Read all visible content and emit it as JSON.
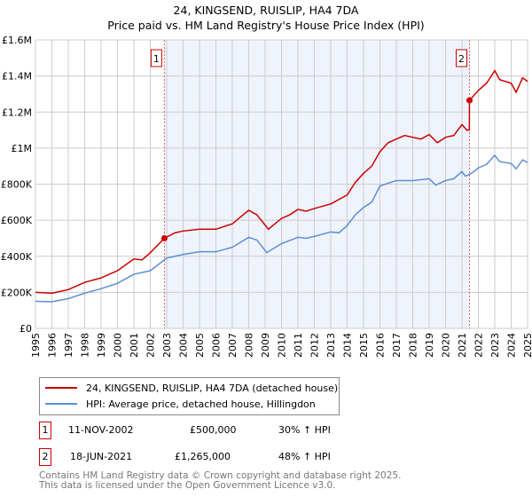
{
  "title": "24, KINGSEND, RUISLIP, HA4 7DA",
  "subtitle": "Price paid vs. HM Land Registry's House Price Index (HPI)",
  "chart_data": {
    "type": "line",
    "xlim": [
      1995,
      2025
    ],
    "ylim": [
      0,
      1600000
    ],
    "yticks": [
      0,
      200000,
      400000,
      600000,
      800000,
      1000000,
      1200000,
      1400000,
      1600000
    ],
    "ytick_labels": [
      "£0",
      "£200K",
      "£400K",
      "£600K",
      "£800K",
      "£1M",
      "£1.2M",
      "£1.4M",
      "£1.6M"
    ],
    "xticks": [
      "1995",
      "1996",
      "1997",
      "1998",
      "1999",
      "2000",
      "2001",
      "2002",
      "2003",
      "2004",
      "2005",
      "2006",
      "2007",
      "2008",
      "2009",
      "2010",
      "2011",
      "2012",
      "2013",
      "2014",
      "2015",
      "2016",
      "2017",
      "2018",
      "2019",
      "2020",
      "2021",
      "2022",
      "2023",
      "2024",
      "2025"
    ],
    "grid": true,
    "colors": {
      "red": "#cc0000",
      "blue": "#5b8fd4",
      "shade": "#eef3fc"
    },
    "shaded_range": [
      2002.86,
      2021.46
    ],
    "series": [
      {
        "name": "24, KINGSEND, RUISLIP, HA4 7DA (detached house)",
        "color": "#cc0000",
        "x": [
          1995,
          1996,
          1997,
          1998,
          1999,
          2000,
          2001,
          2001.5,
          2002,
          2002.86,
          2003.5,
          2004,
          2005,
          2006,
          2007,
          2008,
          2008.5,
          2009.2,
          2010,
          2010.5,
          2011,
          2011.5,
          2012,
          2013,
          2014,
          2014.5,
          2015,
          2015.5,
          2016,
          2016.5,
          2017,
          2017.5,
          2018,
          2018.5,
          2019,
          2019.5,
          2020,
          2020.5,
          2021,
          2021.3,
          2021.45,
          2021.46,
          2022,
          2022.5,
          2023,
          2023.3,
          2024,
          2024.3,
          2024.7,
          2025
        ],
        "y": [
          200000,
          195000,
          215000,
          255000,
          280000,
          320000,
          385000,
          380000,
          420000,
          500000,
          530000,
          540000,
          550000,
          550000,
          580000,
          655000,
          630000,
          550000,
          610000,
          630000,
          660000,
          650000,
          665000,
          690000,
          740000,
          810000,
          860000,
          900000,
          980000,
          1030000,
          1050000,
          1070000,
          1060000,
          1050000,
          1075000,
          1030000,
          1060000,
          1070000,
          1130000,
          1100000,
          1100000,
          1265000,
          1320000,
          1360000,
          1430000,
          1380000,
          1360000,
          1310000,
          1390000,
          1370000
        ]
      },
      {
        "name": "HPI: Average price, detached house, Hillingdon",
        "color": "#5b8fd4",
        "x": [
          1995,
          1996,
          1997,
          1998,
          1999,
          2000,
          2001,
          2002,
          2003,
          2004,
          2005,
          2006,
          2007,
          2008,
          2008.5,
          2009.1,
          2010,
          2011,
          2011.5,
          2012,
          2013,
          2013.5,
          2014,
          2014.5,
          2015,
          2015.5,
          2016,
          2017,
          2018,
          2019,
          2019.4,
          2020,
          2020.5,
          2021,
          2021.2,
          2021.5,
          2022,
          2022.5,
          2023,
          2023.3,
          2024,
          2024.3,
          2024.7,
          2025
        ],
        "y": [
          150000,
          148000,
          165000,
          195000,
          220000,
          250000,
          300000,
          320000,
          390000,
          410000,
          425000,
          425000,
          450000,
          505000,
          490000,
          420000,
          470000,
          505000,
          500000,
          510000,
          535000,
          530000,
          570000,
          630000,
          670000,
          700000,
          790000,
          820000,
          820000,
          830000,
          795000,
          820000,
          830000,
          870000,
          845000,
          855000,
          890000,
          910000,
          960000,
          925000,
          915000,
          885000,
          935000,
          920000
        ]
      }
    ],
    "markers": [
      {
        "label": "1",
        "x": 2002.86,
        "y": 500000
      },
      {
        "label": "2",
        "x": 2021.46,
        "y": 1265000
      }
    ]
  },
  "legend": [
    "24, KINGSEND, RUISLIP, HA4 7DA (detached house)",
    "HPI: Average price, detached house, Hillingdon"
  ],
  "transactions": [
    {
      "num": "1",
      "date": "11-NOV-2002",
      "price": "£500,000",
      "hpi": "30% ↑ HPI"
    },
    {
      "num": "2",
      "date": "18-JUN-2021",
      "price": "£1,265,000",
      "hpi": "48% ↑ HPI"
    }
  ],
  "footer": [
    "Contains HM Land Registry data © Crown copyright and database right 2025.",
    "This data is licensed under the Open Government Licence v3.0."
  ]
}
